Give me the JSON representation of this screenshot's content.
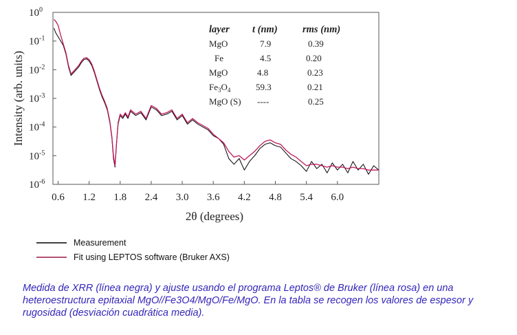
{
  "chart_data": {
    "type": "line",
    "xlabel": "2θ (degrees)",
    "ylabel": "Intensity (arb. units)",
    "xlim": [
      0.5,
      6.8
    ],
    "ylim_log10": [
      -6,
      0
    ],
    "y_scale": "log",
    "x_ticks": [
      "0.6",
      "1.2",
      "1.8",
      "2.4",
      "3.0",
      "3.6",
      "4.2",
      "4.8",
      "5.4",
      "6.0"
    ],
    "y_ticks": [
      {
        "base": "10",
        "exp": "0"
      },
      {
        "base": "10",
        "exp": "-1"
      },
      {
        "base": "10",
        "exp": "-2"
      },
      {
        "base": "10",
        "exp": "-3"
      },
      {
        "base": "10",
        "exp": "-4"
      },
      {
        "base": "10",
        "exp": "-5"
      },
      {
        "base": "10",
        "exp": "-6"
      }
    ],
    "grid": false,
    "legend_position": "bottom-left, below plot",
    "series": [
      {
        "name": "Measurement",
        "color": "#000000",
        "x": [
          0.52,
          0.55,
          0.6,
          0.65,
          0.7,
          0.75,
          0.8,
          0.85,
          0.9,
          0.95,
          1.0,
          1.05,
          1.1,
          1.15,
          1.2,
          1.25,
          1.3,
          1.35,
          1.4,
          1.45,
          1.5,
          1.55,
          1.6,
          1.64,
          1.67,
          1.7,
          1.73,
          1.76,
          1.8,
          1.85,
          1.9,
          1.95,
          2.0,
          2.1,
          2.2,
          2.3,
          2.4,
          2.5,
          2.6,
          2.7,
          2.8,
          2.9,
          3.0,
          3.1,
          3.2,
          3.3,
          3.4,
          3.5,
          3.6,
          3.7,
          3.8,
          3.9,
          4.0,
          4.1,
          4.2,
          4.3,
          4.4,
          4.5,
          4.6,
          4.7,
          4.8,
          4.9,
          5.0,
          5.1,
          5.2,
          5.3,
          5.4,
          5.5,
          5.6,
          5.7,
          5.8,
          5.9,
          6.0,
          6.1,
          6.2,
          6.3,
          6.4,
          6.5,
          6.6,
          6.7,
          6.8
        ],
        "log10_y": [
          -0.55,
          -0.7,
          -0.85,
          -1.0,
          -1.15,
          -1.45,
          -1.9,
          -2.2,
          -2.1,
          -2.0,
          -1.9,
          -1.75,
          -1.65,
          -1.62,
          -1.7,
          -1.85,
          -2.1,
          -2.4,
          -2.7,
          -2.95,
          -3.15,
          -3.4,
          -3.85,
          -4.4,
          -5.1,
          -5.4,
          -4.6,
          -3.9,
          -3.6,
          -3.7,
          -3.55,
          -3.7,
          -3.45,
          -3.6,
          -3.5,
          -3.75,
          -3.3,
          -3.4,
          -3.6,
          -3.55,
          -3.45,
          -3.75,
          -3.6,
          -3.9,
          -3.75,
          -3.9,
          -4.0,
          -4.1,
          -4.3,
          -4.4,
          -4.6,
          -5.1,
          -5.3,
          -5.1,
          -5.5,
          -5.2,
          -5.0,
          -4.75,
          -4.6,
          -4.55,
          -4.65,
          -4.7,
          -4.9,
          -5.1,
          -5.2,
          -5.35,
          -5.55,
          -5.2,
          -5.45,
          -5.3,
          -5.6,
          -5.25,
          -5.5,
          -5.3,
          -5.6,
          -5.2,
          -5.5,
          -5.3,
          -5.65,
          -5.35,
          -5.5
        ]
      },
      {
        "name": "Fit using LEPTOS software (Bruker AXS)",
        "color": "#c0185b",
        "x": [
          0.52,
          0.55,
          0.6,
          0.65,
          0.7,
          0.75,
          0.8,
          0.85,
          0.9,
          0.95,
          1.0,
          1.05,
          1.1,
          1.15,
          1.2,
          1.25,
          1.3,
          1.35,
          1.4,
          1.45,
          1.5,
          1.55,
          1.6,
          1.64,
          1.67,
          1.7,
          1.73,
          1.76,
          1.8,
          1.85,
          1.9,
          1.95,
          2.0,
          2.1,
          2.2,
          2.3,
          2.4,
          2.5,
          2.6,
          2.7,
          2.8,
          2.9,
          3.0,
          3.1,
          3.2,
          3.3,
          3.4,
          3.5,
          3.6,
          3.7,
          3.8,
          3.9,
          4.0,
          4.1,
          4.2,
          4.3,
          4.4,
          4.5,
          4.6,
          4.7,
          4.8,
          4.9,
          5.0,
          5.1,
          5.2,
          5.3,
          5.4,
          5.5,
          5.6,
          5.7,
          5.8,
          5.9,
          6.0,
          6.1,
          6.2,
          6.3,
          6.4,
          6.5,
          6.6,
          6.7,
          6.8
        ],
        "log10_y": [
          -0.25,
          -0.3,
          -0.45,
          -0.8,
          -1.1,
          -1.4,
          -1.85,
          -2.15,
          -2.05,
          -1.95,
          -1.85,
          -1.7,
          -1.6,
          -1.58,
          -1.65,
          -1.8,
          -2.05,
          -2.35,
          -2.65,
          -2.9,
          -3.1,
          -3.35,
          -3.8,
          -4.35,
          -5.0,
          -5.35,
          -4.55,
          -3.85,
          -3.55,
          -3.65,
          -3.5,
          -3.65,
          -3.4,
          -3.55,
          -3.45,
          -3.7,
          -3.25,
          -3.35,
          -3.55,
          -3.5,
          -3.4,
          -3.7,
          -3.55,
          -3.85,
          -3.7,
          -3.85,
          -3.95,
          -4.05,
          -4.25,
          -4.4,
          -4.55,
          -4.85,
          -5.05,
          -5.0,
          -5.15,
          -5.0,
          -4.85,
          -4.65,
          -4.5,
          -4.45,
          -4.55,
          -4.6,
          -4.8,
          -4.95,
          -5.05,
          -5.2,
          -5.35,
          -5.3,
          -5.3,
          -5.35,
          -5.4,
          -5.35,
          -5.4,
          -5.4,
          -5.45,
          -5.4,
          -5.45,
          -5.45,
          -5.5,
          -5.5,
          -5.5
        ]
      }
    ],
    "inset_table": {
      "headers": [
        "layer",
        "t (nm)",
        "rms (nm)"
      ],
      "rows": [
        [
          "MgO",
          "7.9",
          "0.39"
        ],
        [
          "Fe",
          "4.5",
          "0.20"
        ],
        [
          "MgO",
          "4.8",
          "0.23"
        ],
        [
          "Fe3O4",
          "59.3",
          "0.21"
        ],
        [
          "MgO (S)",
          "----",
          "0.25"
        ]
      ]
    }
  },
  "legend": [
    {
      "label": "Measurement",
      "color": "#000000"
    },
    {
      "label": "Fit using LEPTOS software (Bruker AXS)",
      "color": "#9c1545"
    }
  ],
  "caption": "Medida de XRR (línea negra) y ajuste usando el programa Leptos® de Bruker (línea rosa) en una heteroestructura epitaxial MgO//Fe3O4/MgO/Fe/MgO. En la tabla se recogen los valores de espesor y rugosidad (desviación cuadrática media)."
}
